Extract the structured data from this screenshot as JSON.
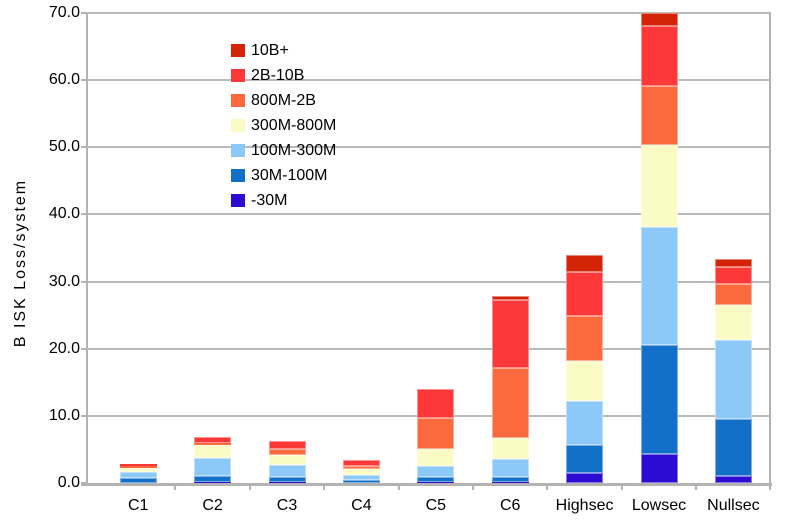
{
  "chart_data": {
    "type": "bar",
    "stacked": true,
    "title": "",
    "xlabel": "",
    "ylabel": "B ISK Loss/system",
    "ylim": [
      0,
      70
    ],
    "ytick_step": 10,
    "ytick_labels": [
      "0.0",
      "10.0",
      "20.0",
      "30.0",
      "40.0",
      "50.0",
      "60.0",
      "70.0"
    ],
    "grid": true,
    "legend_position": "top-left-inside",
    "categories": [
      "C1",
      "C2",
      "C3",
      "C4",
      "C5",
      "C6",
      "Highsec",
      "Lowsec",
      "Nullsec"
    ],
    "series": [
      {
        "name": "-30M",
        "color": "#2c0bd2",
        "values": [
          0.05,
          0.2,
          0.1,
          0.05,
          0.15,
          0.1,
          1.5,
          4.3,
          1.0
        ]
      },
      {
        "name": "30M-100M",
        "color": "#1370c8",
        "values": [
          0.75,
          0.9,
          0.85,
          0.45,
          0.7,
          0.75,
          4.1,
          16.3,
          8.5
        ]
      },
      {
        "name": "100M-300M",
        "color": "#8dc9f8",
        "values": [
          0.9,
          2.6,
          1.75,
          0.7,
          1.7,
          2.7,
          6.6,
          17.6,
          11.8
        ]
      },
      {
        "name": "300M-800M",
        "color": "#fafbc5",
        "values": [
          0.6,
          1.9,
          1.5,
          0.95,
          2.5,
          3.2,
          6.0,
          12.2,
          5.2
        ]
      },
      {
        "name": "800M-2B",
        "color": "#fb6a3c",
        "values": [
          0.3,
          0.35,
          0.9,
          0.45,
          4.6,
          10.35,
          6.7,
          8.7,
          3.1
        ]
      },
      {
        "name": "2B-10B",
        "color": "#fc3838",
        "values": [
          0.3,
          0.95,
          1.2,
          0.8,
          4.4,
          10.2,
          6.5,
          9.0,
          2.5
        ]
      },
      {
        "name": "10B+",
        "color": "#d42408",
        "values": [
          0.0,
          0.0,
          0.0,
          0.0,
          0.0,
          0.6,
          2.6,
          1.9,
          1.25
        ]
      }
    ],
    "totals": [
      2.9,
      6.9,
      6.3,
      3.4,
      14.1,
      27.9,
      34.0,
      70.0,
      33.4
    ],
    "colors": {
      "grid": "#b9b9b9",
      "axis": "#b3b3b3",
      "text": "#000000",
      "background": "#ffffff"
    }
  }
}
